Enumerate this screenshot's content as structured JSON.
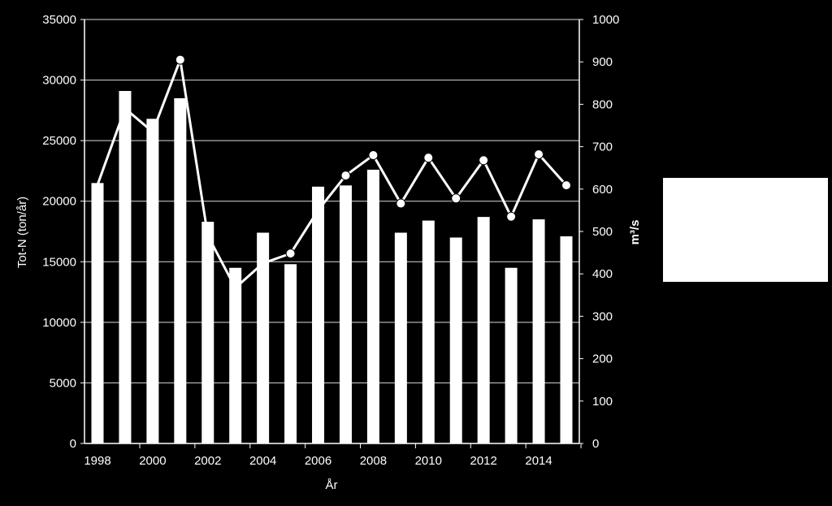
{
  "chart_data": {
    "type": "bar+line",
    "title": "",
    "xlabel": "År",
    "ylabel_left": "Tot-N (ton/år)",
    "ylabel_right": "m³/s",
    "ylim_left": [
      0,
      35000
    ],
    "ylim_right": [
      0,
      1000
    ],
    "yticks_left": [
      "0",
      "5000",
      "10000",
      "15000",
      "20000",
      "25000",
      "30000",
      "35000"
    ],
    "yticks_right": [
      "0",
      "100",
      "200",
      "300",
      "400",
      "500",
      "600",
      "700",
      "800",
      "900",
      "1000"
    ],
    "xtick_labels": [
      "1998",
      "2000",
      "2002",
      "2004",
      "2006",
      "2008",
      "2010",
      "2012",
      "2014"
    ],
    "grid": true,
    "x": [
      1998,
      1999,
      2000,
      2001,
      2002,
      2003,
      2004,
      2005,
      2006,
      2007,
      2008,
      2009,
      2010,
      2011,
      2012,
      2013,
      2014,
      2015
    ],
    "series": [
      {
        "kind": "bar",
        "axis": "left",
        "color": "#ffffff",
        "values": [
          21500,
          29100,
          26800,
          28500,
          18300,
          14500,
          17400,
          14800,
          21200,
          21300,
          22600,
          17400,
          18400,
          17000,
          18700,
          14500,
          18500,
          17100
        ]
      },
      {
        "kind": "line",
        "axis": "right",
        "color": "#ffffff",
        "values": [
          610,
          790,
          735,
          905,
          490,
          367,
          425,
          448,
          550,
          632,
          680,
          566,
          674,
          578,
          668,
          535,
          682,
          609
        ],
        "markers": [
          false,
          false,
          false,
          true,
          false,
          false,
          false,
          true,
          false,
          true,
          true,
          true,
          true,
          true,
          true,
          true,
          true,
          true
        ]
      }
    ],
    "legend": {
      "placement": "right",
      "entries": []
    }
  }
}
